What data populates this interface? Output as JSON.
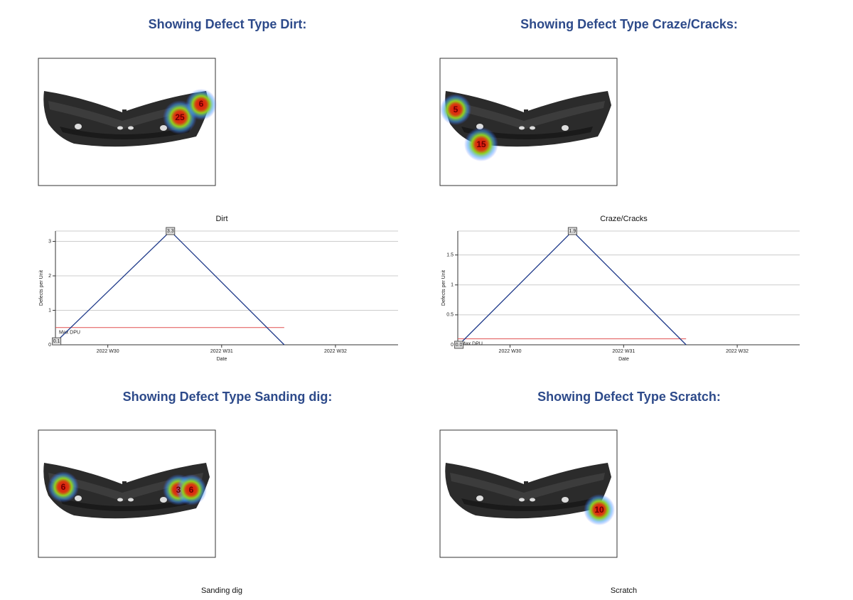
{
  "panels": [
    {
      "heading": "Showing Defect Type Dirt:",
      "spots": [
        25,
        6
      ]
    },
    {
      "heading": "Showing Defect Type Craze/Cracks:",
      "spots": [
        5,
        15
      ]
    },
    {
      "heading": "Showing Defect Type Sanding dig:",
      "spots": [
        6,
        3,
        6
      ]
    },
    {
      "heading": "Showing Defect Type Scratch:",
      "spots": [
        10
      ]
    }
  ],
  "chart_data": [
    {
      "type": "line",
      "title": "Dirt",
      "x_label": "Date",
      "y_label": "Defects per Unit",
      "x": [
        29.55,
        30.55,
        31.55
      ],
      "values": [
        0.1,
        3.3,
        0
      ],
      "value_labels": [
        "0.1",
        "3.3",
        null
      ],
      "color": "#1f3a8a",
      "xlim": [
        29.54,
        32.55
      ],
      "xticks": [
        {
          "value": 30,
          "label": "2022 W30"
        },
        {
          "value": 31,
          "label": "2022 W31"
        },
        {
          "value": 32,
          "label": "2022 W32"
        }
      ],
      "ylim": [
        0,
        3.3
      ],
      "yticks": [
        0,
        1,
        2,
        3
      ],
      "grid": true,
      "max_dpu": {
        "value": 0.5,
        "label": "Max DPU",
        "color": "#e05050"
      }
    },
    {
      "type": "line",
      "title": "Craze/Cracks",
      "x_label": "Date",
      "y_label": "Defects per Unit",
      "x": [
        29.55,
        30.55,
        31.55
      ],
      "values": [
        0,
        1.9,
        0
      ],
      "value_labels": [
        "0.0",
        "1.9",
        null
      ],
      "color": "#1f3a8a",
      "xlim": [
        29.54,
        32.55
      ],
      "xticks": [
        {
          "value": 30,
          "label": "2022 W30"
        },
        {
          "value": 31,
          "label": "2022 W31"
        },
        {
          "value": 32,
          "label": "2022 W32"
        }
      ],
      "ylim": [
        0,
        1.9
      ],
      "yticks": [
        0,
        0.5,
        1,
        1.5
      ],
      "grid": true,
      "max_dpu": {
        "value": 0.1,
        "label": "Max DPU",
        "color": "#e05050"
      }
    },
    {
      "type": "line",
      "title": "Sanding dig"
    },
    {
      "type": "line",
      "title": "Scratch"
    }
  ]
}
